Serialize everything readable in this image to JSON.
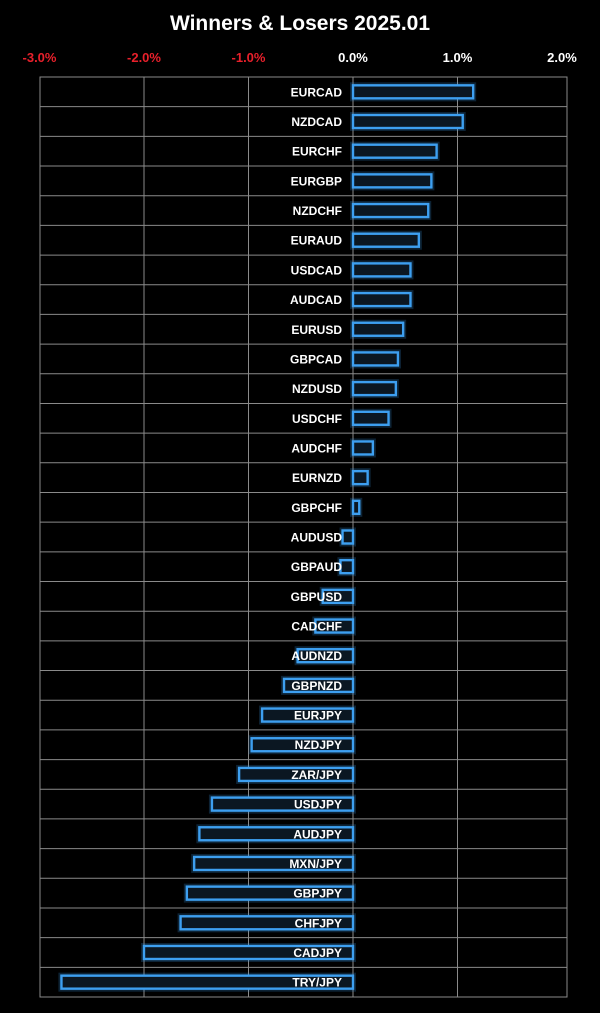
{
  "chart_data": {
    "type": "bar",
    "orientation": "horizontal",
    "title": "Winners & Losers 2025.01",
    "x_tick_labels": [
      "-3.0%",
      "-2.0%",
      "-1.0%",
      "0.0%",
      "1.0%",
      "2.0%"
    ],
    "x_ticks": [
      -3.0,
      -2.0,
      -1.0,
      0.0,
      1.0,
      2.0
    ],
    "xlim": [
      -3.0,
      2.0
    ],
    "x_axis_position": "top",
    "grid": true,
    "legend": "none",
    "categories": [
      "EURCAD",
      "NZDCAD",
      "EURCHF",
      "EURGBP",
      "NZDCHF",
      "EURAUD",
      "USDCAD",
      "AUDCAD",
      "EURUSD",
      "GBPCAD",
      "NZDUSD",
      "USDCHF",
      "AUDCHF",
      "EURNZD",
      "GBPCHF",
      "AUDUSD",
      "GBPAUD",
      "GBPUSD",
      "CADCHF",
      "AUDNZD",
      "GBPNZD",
      "EURJPY",
      "NZDJPY",
      "ZAR/JPY",
      "USDJPY",
      "AUDJPY",
      "MXN/JPY",
      "GBPJPY",
      "CHFJPY",
      "CADJPY",
      "TRY/JPY"
    ],
    "values": [
      1.15,
      1.05,
      0.8,
      0.75,
      0.72,
      0.63,
      0.55,
      0.55,
      0.48,
      0.43,
      0.41,
      0.34,
      0.19,
      0.14,
      0.06,
      -0.1,
      -0.12,
      -0.29,
      -0.36,
      -0.53,
      -0.66,
      -0.87,
      -0.97,
      -1.09,
      -1.35,
      -1.47,
      -1.52,
      -1.59,
      -1.65,
      -2.0,
      -2.79
    ]
  },
  "colors": {
    "background": "#000000",
    "bar_stroke": "#3d9ff0",
    "bar_fill": "#0b1722",
    "gridline": "#8a8a8a",
    "negative_tick": "#e8202b",
    "positive_tick": "#ffffff",
    "text": "#ffffff"
  }
}
